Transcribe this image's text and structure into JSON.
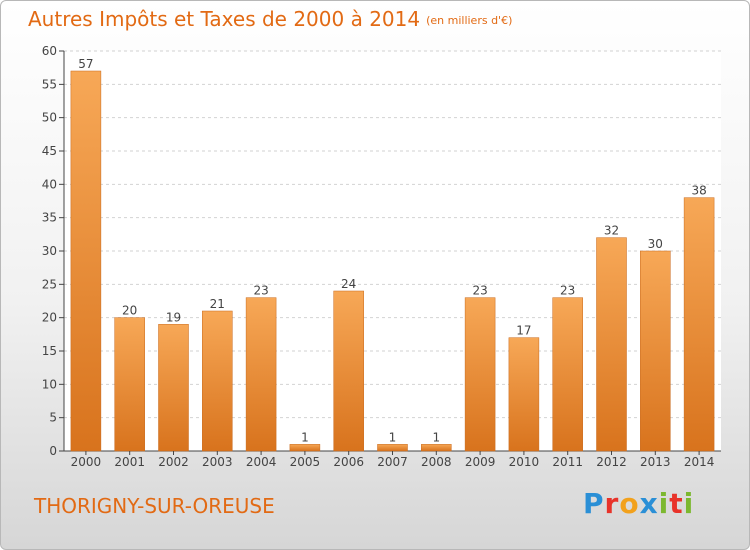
{
  "title": "Autres Impôts et Taxes de 2000 à 2014",
  "title_unit": "(en milliers d'€)",
  "city": "THORIGNY-SUR-OREUSE",
  "logo": {
    "letters": [
      "P",
      "r",
      "o",
      "x",
      "i",
      "t",
      "i"
    ],
    "colors": [
      "#2a8fd6",
      "#e8332a",
      "#f2a11c",
      "#2a8fd6",
      "#7cb82f",
      "#e8332a",
      "#7cb82f"
    ]
  },
  "colors": {
    "accent": "#e26a14",
    "bar_top": "#f7a857",
    "bar_bottom": "#d8731d",
    "grid": "#d2d2d2"
  },
  "chart_data": {
    "type": "bar",
    "categories": [
      "2000",
      "2001",
      "2002",
      "2003",
      "2004",
      "2005",
      "2006",
      "2007",
      "2008",
      "2009",
      "2010",
      "2011",
      "2012",
      "2013",
      "2014"
    ],
    "values": [
      57,
      20,
      19,
      21,
      23,
      1,
      24,
      1,
      1,
      23,
      17,
      23,
      32,
      30,
      38
    ],
    "ylim": [
      0,
      60
    ],
    "yticks": [
      0,
      5,
      10,
      15,
      20,
      25,
      30,
      35,
      40,
      45,
      50,
      55,
      60
    ],
    "grid": true,
    "legend": "none"
  }
}
